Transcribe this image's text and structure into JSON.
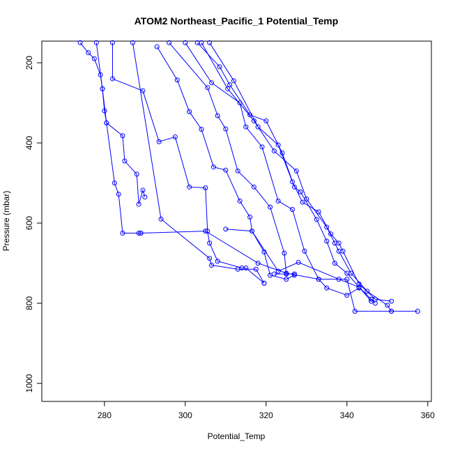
{
  "chart_data": {
    "type": "line",
    "title": "ATOM2 Northeast_Pacific_1 Potential_Temp",
    "x_label": "Potential_Temp",
    "y_label": "Pressure (mbar)",
    "color": "#0000ff",
    "markers": "open-circle",
    "xlim": [
      264.5,
      360.9
    ],
    "ylim": [
      1045,
      146
    ],
    "xticks": [
      280,
      300,
      320,
      340,
      360
    ],
    "yticks": [
      200,
      400,
      600,
      800,
      1000
    ],
    "series": [
      {
        "color": "#0000ff",
        "x": [
          274,
          276,
          277.5,
          279,
          279.5,
          280,
          280.5,
          282.5,
          283.5,
          284.5,
          288.5,
          289
        ],
        "values": [
          150,
          175,
          190,
          230,
          265,
          320,
          350,
          500,
          528,
          625,
          625,
          625
        ]
      },
      {
        "color": "#0000ff",
        "x": [
          278,
          279.5,
          280.5,
          284.5,
          285,
          288,
          288.5,
          289.5,
          290
        ],
        "values": [
          150,
          265,
          350,
          382,
          445,
          478,
          553,
          518,
          535
        ]
      },
      {
        "color": "#0000ff",
        "x": [
          282,
          282,
          289.5,
          293.5,
          297.5,
          301,
          305,
          305.5,
          306,
          308,
          314,
          315,
          319.5
        ],
        "values": [
          150,
          240,
          270,
          397,
          385,
          510,
          512,
          620,
          650,
          695,
          712,
          712,
          750
        ]
      },
      {
        "color": "#0000ff",
        "x": [
          287,
          294,
          306,
          306.5,
          313,
          317.5,
          319.5
        ],
        "values": [
          150,
          590,
          688,
          705,
          715,
          715,
          750
        ]
      },
      {
        "color": "#0000ff",
        "x": [
          293,
          298,
          301,
          304,
          307,
          310,
          313.5,
          316,
          316.5,
          319.5,
          321,
          325,
          327
        ],
        "values": [
          160,
          243,
          322,
          366,
          460,
          468,
          545,
          585,
          620,
          672,
          730,
          740,
          730
        ]
      },
      {
        "color": "#0000ff",
        "x": [
          296,
          305.5,
          308,
          310,
          313,
          317,
          321,
          324.5,
          325,
          322,
          327
        ],
        "values": [
          150,
          262,
          332,
          365,
          470,
          510,
          560,
          675,
          727,
          727,
          727
        ]
      },
      {
        "color": "#0000ff",
        "x": [
          300,
          306.5,
          313.5,
          315,
          319,
          323,
          326.5,
          329.5,
          333,
          335,
          340,
          343
        ],
        "values": [
          150,
          250,
          300,
          360,
          410,
          545,
          566,
          670,
          740,
          762,
          780,
          762
        ]
      },
      {
        "color": "#0000ff",
        "x": [
          303,
          308.5,
          311,
          316,
          320,
          324,
          327,
          328.5,
          332.5,
          335,
          337,
          340,
          343,
          346,
          347
        ],
        "values": [
          150,
          210,
          255,
          330,
          345,
          425,
          510,
          522,
          591,
          645,
          700,
          725,
          760,
          790,
          800
        ]
      },
      {
        "color": "#0000ff",
        "x": [
          304,
          310.5,
          317,
          322,
          327.5,
          330,
          335,
          337,
          338,
          341,
          345,
          350,
          351
        ],
        "values": [
          150,
          265,
          345,
          420,
          470,
          540,
          610,
          650,
          670,
          725,
          770,
          805,
          820
        ]
      },
      {
        "color": "#0000ff",
        "x": [
          306,
          312,
          318,
          323,
          326.5,
          329,
          333,
          336,
          338,
          339,
          343,
          347,
          351
        ],
        "values": [
          150,
          245,
          360,
          405,
          497,
          548,
          572,
          627,
          650,
          670,
          752,
          790,
          795
        ]
      },
      {
        "color": "#0000ff",
        "x": [
          289,
          305,
          318,
          325,
          333,
          340,
          342,
          351,
          357.5
        ],
        "values": [
          625,
          620,
          700,
          725,
          740,
          740,
          820,
          820,
          820
        ]
      },
      {
        "color": "#0000ff",
        "x": [
          310,
          316.5,
          323,
          328,
          338,
          343,
          346
        ],
        "values": [
          615,
          620,
          720,
          698,
          740,
          760,
          795
        ]
      }
    ]
  }
}
